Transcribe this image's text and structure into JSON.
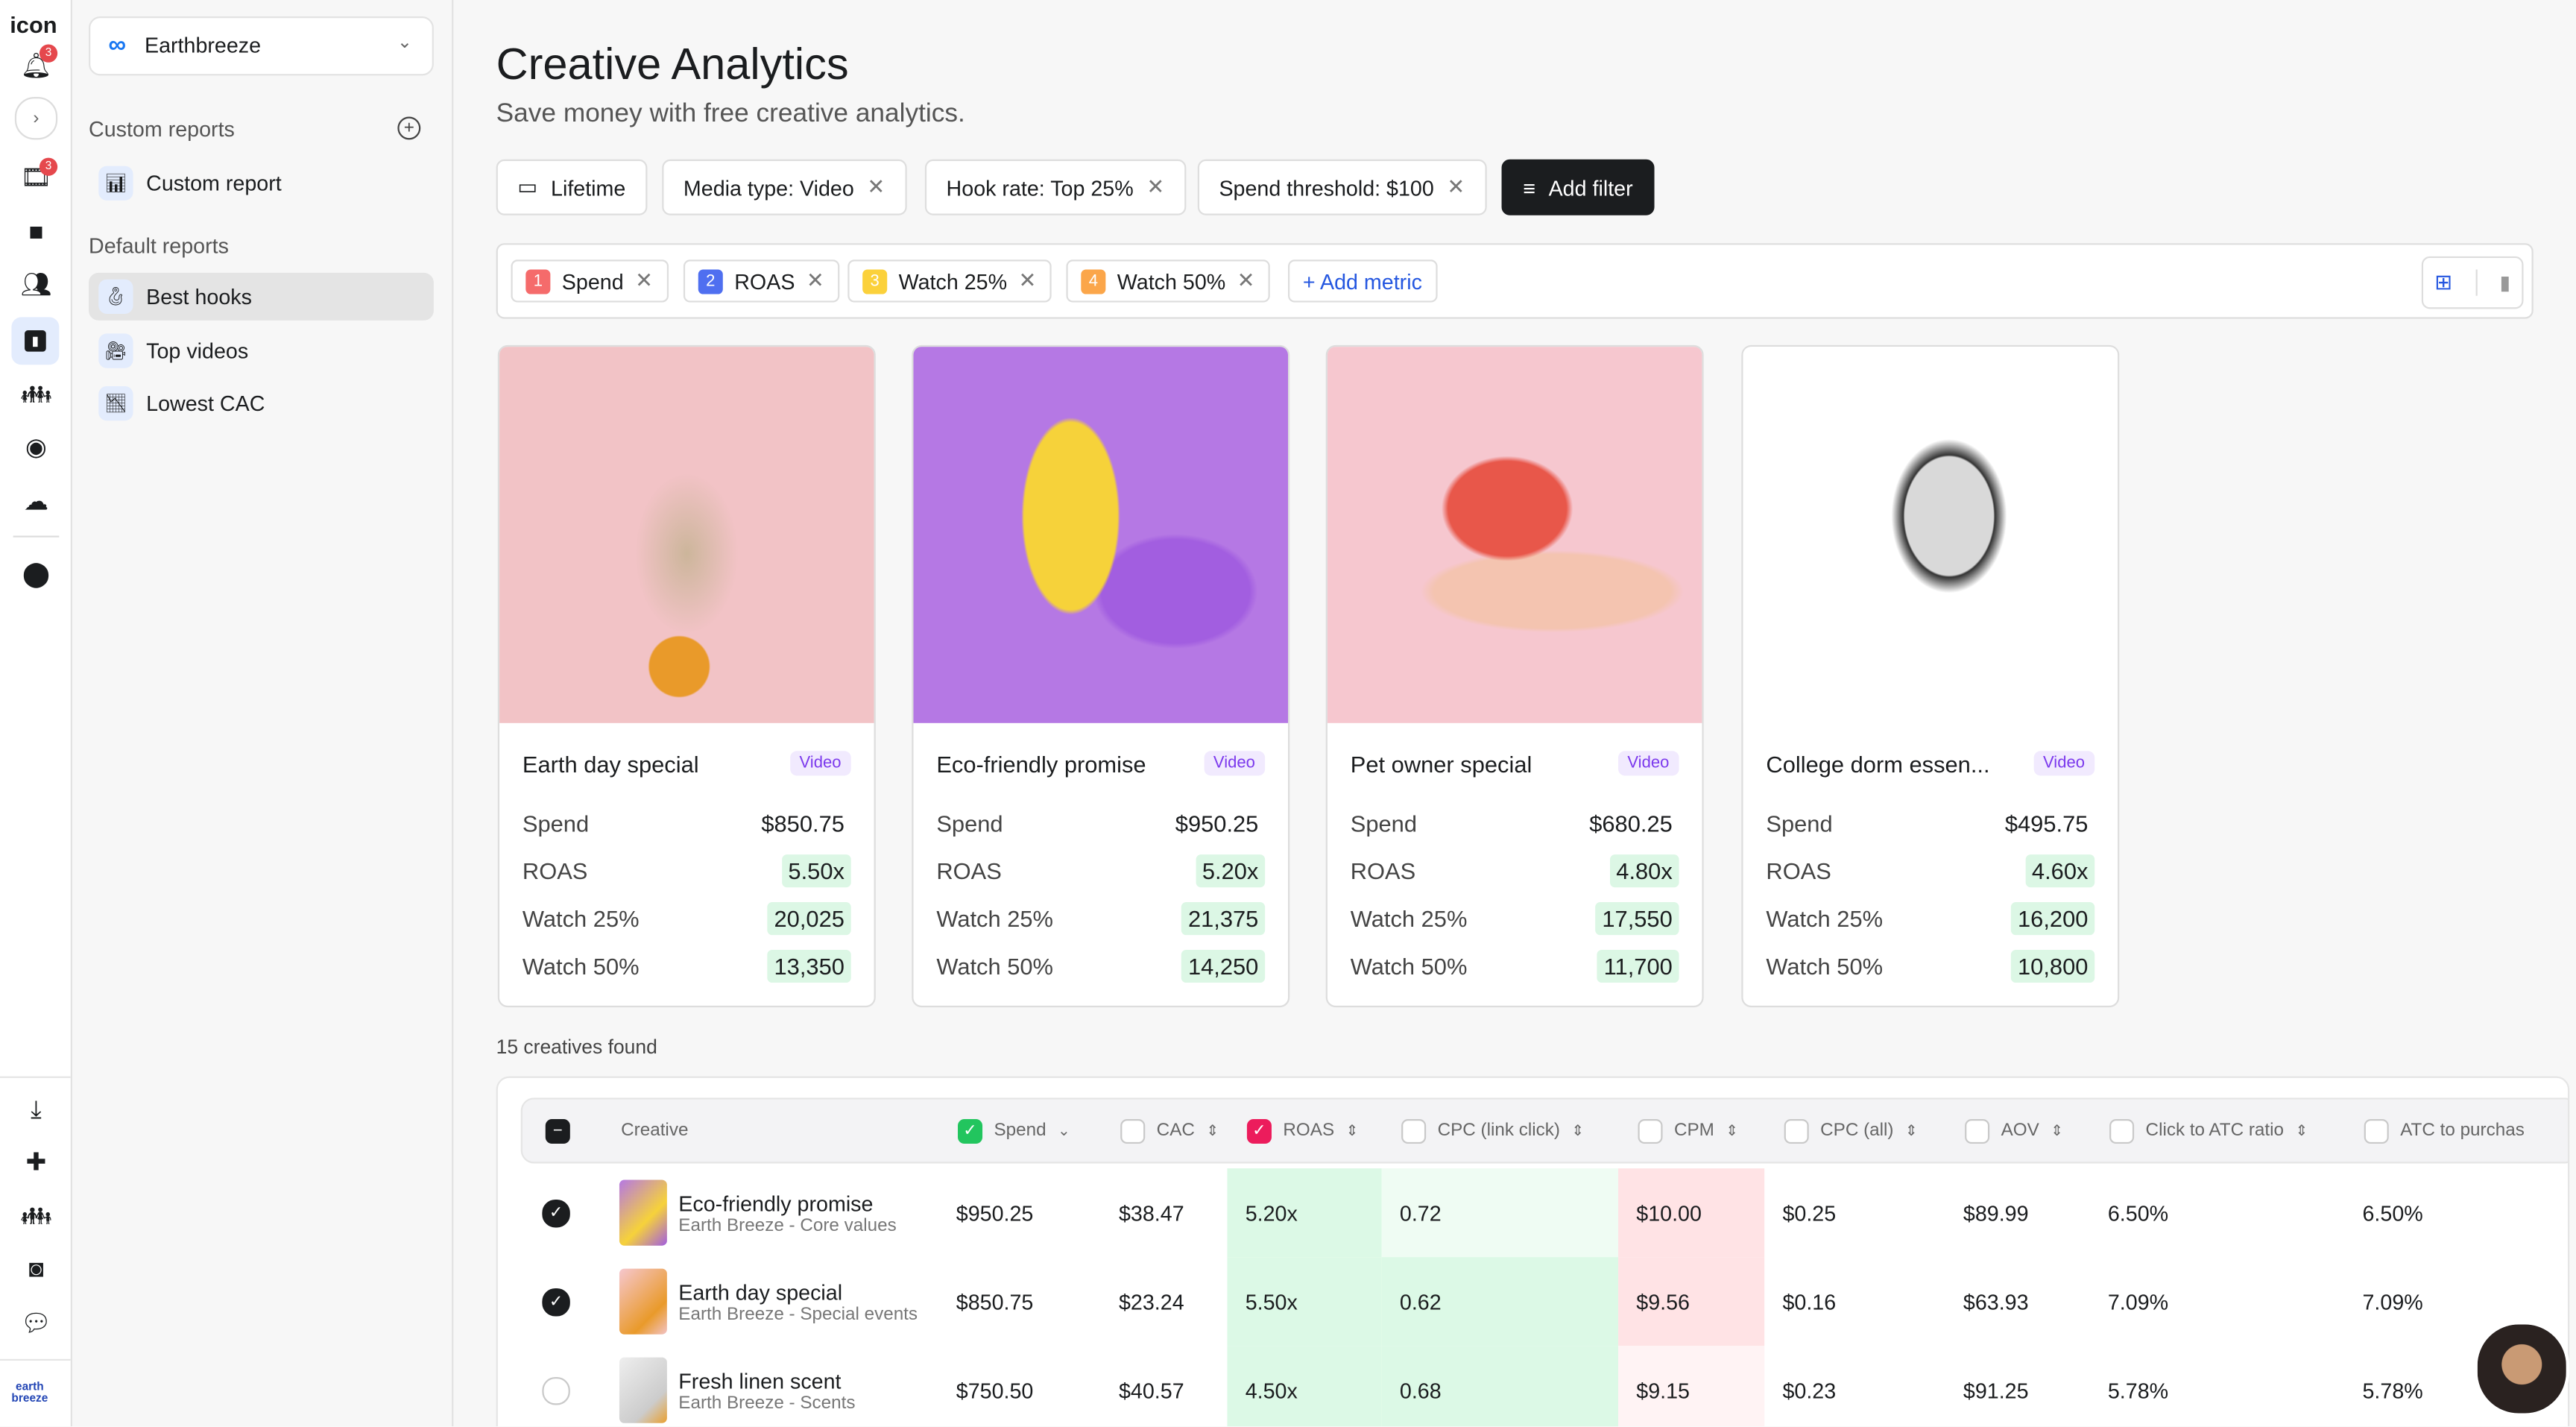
{
  "rail": {
    "logo": "icon",
    "notifications_badge": "3",
    "videos_badge": "3"
  },
  "account": {
    "name": "Earthbreeze"
  },
  "sidebar": {
    "custom_heading": "Custom reports",
    "custom_items": [
      {
        "label": "Custom report",
        "icon": "📊"
      }
    ],
    "default_heading": "Default reports",
    "default_items": [
      {
        "label": "Best hooks",
        "icon": "🪝"
      },
      {
        "label": "Top videos",
        "icon": "🎥"
      },
      {
        "label": "Lowest CAC",
        "icon": "📉"
      }
    ]
  },
  "header": {
    "title": "Creative Analytics",
    "subtitle": "Save money with free creative analytics."
  },
  "filters": {
    "date": "Lifetime",
    "chips": [
      "Media type: Video",
      "Hook rate: Top 25%",
      "Spend threshold: $100"
    ],
    "add_filter": "Add filter"
  },
  "metrics": {
    "items": [
      {
        "n": "1",
        "label": "Spend",
        "color": "#f56b6b"
      },
      {
        "n": "2",
        "label": "ROAS",
        "color": "#4f6ff0"
      },
      {
        "n": "3",
        "label": "Watch 25%",
        "color": "#fbd13b"
      },
      {
        "n": "4",
        "label": "Watch 50%",
        "color": "#fba64a"
      }
    ],
    "add_metric": "+ Add metric"
  },
  "cards": [
    {
      "title": "Earth day special",
      "tag": "Video",
      "spend": "$850.75",
      "roas": "5.50x",
      "w25": "20,025",
      "w50": "13,350"
    },
    {
      "title": "Eco-friendly promise",
      "tag": "Video",
      "spend": "$950.25",
      "roas": "5.20x",
      "w25": "21,375",
      "w50": "14,250"
    },
    {
      "title": "Pet owner special",
      "tag": "Video",
      "spend": "$680.25",
      "roas": "4.80x",
      "w25": "17,550",
      "w50": "11,700"
    },
    {
      "title": "College dorm essen...",
      "tag": "Video",
      "spend": "$495.75",
      "roas": "4.60x",
      "w25": "16,200",
      "w50": "10,800"
    }
  ],
  "card_labels": {
    "spend": "Spend",
    "roas": "ROAS",
    "w25": "Watch 25%",
    "w50": "Watch 50%"
  },
  "found": "15 creatives found",
  "table": {
    "columns": [
      "Creative",
      "Spend",
      "CAC",
      "ROAS",
      "CPC (link click)",
      "CPM",
      "CPC (all)",
      "AOV",
      "Click to ATC ratio",
      "ATC to purchas"
    ],
    "rows": [
      {
        "checked": true,
        "name": "Eco-friendly promise",
        "sub": "Earth Breeze - Core values",
        "cells": [
          "$950.25",
          "$38.47",
          "5.20x",
          "0.72",
          "$10.00",
          "$0.25",
          "$89.99",
          "6.50%",
          "6.50%"
        ]
      },
      {
        "checked": true,
        "name": "Earth day special",
        "sub": "Earth Breeze - Special events",
        "cells": [
          "$850.75",
          "$23.24",
          "5.50x",
          "0.62",
          "$9.56",
          "$0.16",
          "$63.93",
          "7.09%",
          "7.09%"
        ]
      },
      {
        "checked": false,
        "name": "Fresh linen scent",
        "sub": "Earth Breeze - Scents",
        "cells": [
          "$750.50",
          "$40.57",
          "4.50x",
          "0.68",
          "$9.15",
          "$0.23",
          "$91.25",
          "5.78%",
          "5.78%"
        ]
      }
    ]
  }
}
